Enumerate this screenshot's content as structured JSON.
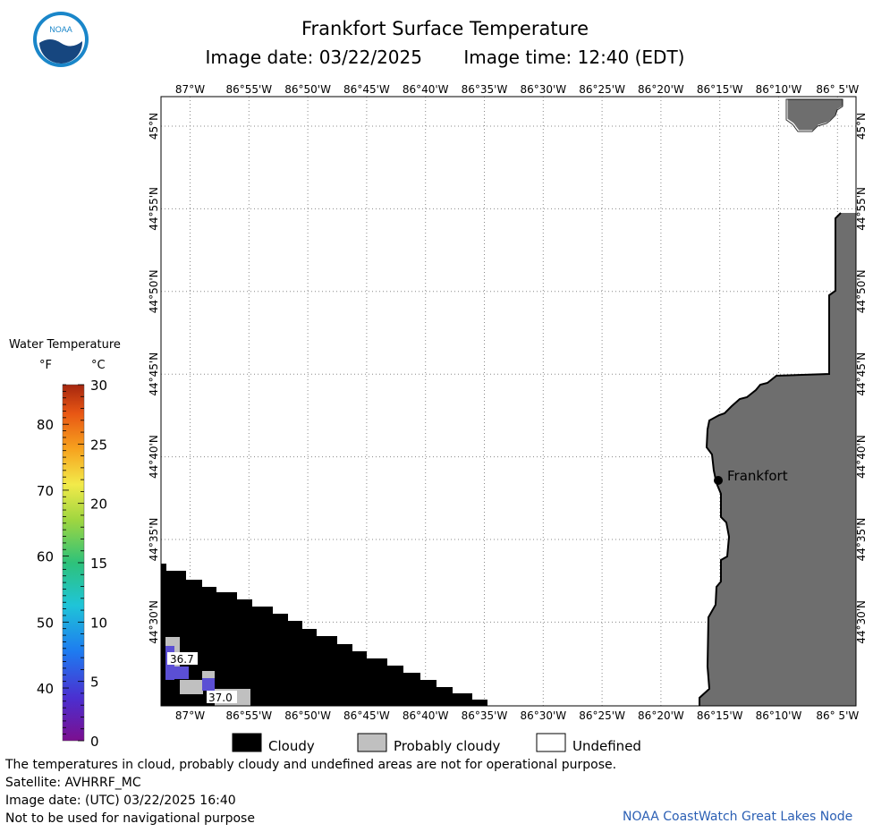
{
  "header": {
    "title": "Frankfort Surface Temperature",
    "image_date": "Image date: 03/22/2025",
    "image_time": "Image time: 12:40 (EDT)"
  },
  "logo": {
    "text": "NOAA",
    "colors": {
      "outer": "#1a86c9",
      "inner": "#16467f",
      "bird": "#ffffff"
    }
  },
  "map": {
    "lon_labels": [
      "87°W",
      "86°55'W",
      "86°50'W",
      "86°45'W",
      "86°40'W",
      "86°35'W",
      "86°30'W",
      "86°25'W",
      "86°20'W",
      "86°15'W",
      "86°10'W",
      "86° 5'W"
    ],
    "lat_labels": [
      "45°N",
      "44°55'N",
      "44°50'N",
      "44°45'N",
      "44°40'N",
      "44°35'N",
      "44°30'N"
    ],
    "city": {
      "name": "Frankfort"
    },
    "readings": [
      "36.7",
      "37.0"
    ],
    "colors": {
      "land": "#6e6e6e",
      "cloud": "#000000",
      "probably_cloudy": "#c0c0c0",
      "water_cold": "#5b4fd4",
      "grid": "#888888"
    }
  },
  "colorbar": {
    "title": "Water Temperature",
    "unit_f": "°F",
    "unit_c": "°C",
    "f_ticks": [
      "80",
      "70",
      "60",
      "50",
      "40"
    ],
    "c_ticks": [
      "30",
      "25",
      "20",
      "15",
      "10",
      "5",
      "0"
    ]
  },
  "key": {
    "cloudy": "Cloudy",
    "probably_cloudy": "Probably cloudy",
    "undefined": "Undefined"
  },
  "notes": [
    "The temperatures in cloud, probably cloudy and undefined areas are not for operational purpose.",
    "Satellite: AVHRRF_MC",
    "Image date: (UTC) 03/22/2025  16:40",
    "Not to be used for navigational purpose"
  ],
  "credit": "NOAA CoastWatch Great Lakes Node"
}
